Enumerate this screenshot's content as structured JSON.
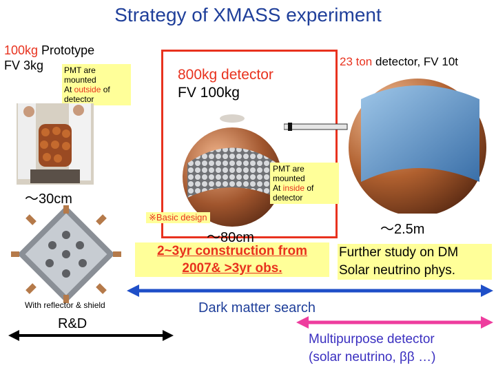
{
  "title": "Strategy of XMASS experiment",
  "prototype": {
    "mass": "100kg",
    "label": " Prototype",
    "fv": "FV 3kg",
    "pmt_note_1": "PMT are",
    "pmt_note_2": "mounted",
    "pmt_note_3_pre": "At ",
    "pmt_note_3_hl": "outside",
    "pmt_note_3_post": " of",
    "pmt_note_4": "detector",
    "size": "～30cm",
    "reflector_note": "With reflector & shield"
  },
  "detector_800": {
    "line1": "800kg detector",
    "line2": "FV 100kg",
    "pmt_note_1": "PMT are",
    "pmt_note_2": "mounted",
    "pmt_note_3_pre": "At ",
    "pmt_note_3_hl": "inside",
    "pmt_note_3_post": " of",
    "pmt_note_4": "detector",
    "basic_design": "※Basic design",
    "size": "～80cm",
    "construction_1": "2~3yr construction from",
    "construction_2": "2007& >3yr obs."
  },
  "detector_23t": {
    "mass": "23 ton",
    "rest": " detector, FV 10t",
    "size": "～2.5m",
    "study_1": "Further study on DM",
    "study_2": "Solar neutrino phys."
  },
  "arrows": {
    "rd": "R&D",
    "dark_matter": "Dark matter search",
    "multipurpose_1": "Multipurpose detector",
    "multipurpose_2": "(solar neutrino, ββ …)"
  },
  "colors": {
    "title": "#1f3f9a",
    "highlight_red": "#e8321e",
    "note_box": "#ffff99",
    "dm_arrow": "#1f4fc8",
    "multi_arrow": "#ee3d9e",
    "multi_text": "#3a2fc0"
  }
}
